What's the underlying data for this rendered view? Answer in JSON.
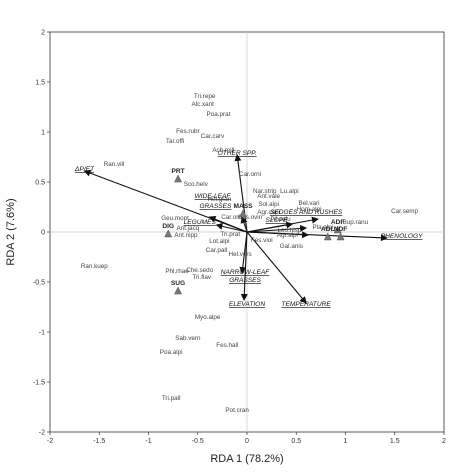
{
  "chart_data": {
    "type": "scatter",
    "xlabel": "RDA 1 (78.2%)",
    "ylabel": "RDA 2 (7.6%)",
    "xlim": [
      -2,
      2
    ],
    "ylim": [
      -2,
      2
    ],
    "xticks": [
      -2,
      -1.5,
      -1,
      -0.5,
      0,
      0.5,
      1,
      1.5,
      2
    ],
    "yticks": [
      -2,
      -1.5,
      -1,
      -0.5,
      0,
      0.5,
      1,
      1.5,
      2
    ],
    "tick_labels_x": [
      "-2",
      "-1.5",
      "-1",
      "-0.5",
      "0",
      "0.5",
      "1",
      "1.5",
      "2"
    ],
    "tick_labels_y": [
      "-2",
      "-1.5",
      "-1",
      "-0.5",
      "0",
      "0.5",
      "1",
      "1.5",
      "2"
    ],
    "grid": false,
    "zero_lines": true,
    "species": [
      {
        "label": "Tri.repe",
        "x": -0.43,
        "y": 1.34
      },
      {
        "label": "Alc.xant",
        "x": -0.45,
        "y": 1.26
      },
      {
        "label": "Poa.prat",
        "x": -0.29,
        "y": 1.16
      },
      {
        "label": "Fes.rubr",
        "x": -0.6,
        "y": 0.99
      },
      {
        "label": "Car.carv",
        "x": -0.35,
        "y": 0.94
      },
      {
        "label": "Tar.offi",
        "x": -0.73,
        "y": 0.89
      },
      {
        "label": "Ach.mill",
        "x": -0.24,
        "y": 0.8
      },
      {
        "label": "Ran.vill",
        "x": -1.35,
        "y": 0.66
      },
      {
        "label": "Car.orni",
        "x": 0.03,
        "y": 0.56
      },
      {
        "label": "Sco.helv",
        "x": -0.52,
        "y": 0.46
      },
      {
        "label": "Nar.strip",
        "x": 0.18,
        "y": 0.39
      },
      {
        "label": "Lu.alpi",
        "x": 0.43,
        "y": 0.39
      },
      {
        "label": "Ant.vale",
        "x": 0.22,
        "y": 0.34
      },
      {
        "label": "Hel.gran",
        "x": -0.28,
        "y": 0.31
      },
      {
        "label": "Bel.vari",
        "x": 0.63,
        "y": 0.27
      },
      {
        "label": "Sol.alpi",
        "x": 0.22,
        "y": 0.26
      },
      {
        "label": "Hom.alpi",
        "x": 0.63,
        "y": 0.21
      },
      {
        "label": "Agr.capi",
        "x": 0.22,
        "y": 0.18
      },
      {
        "label": "Car.semp",
        "x": 1.6,
        "y": 0.19
      },
      {
        "label": "Ces.ovin",
        "x": 0.03,
        "y": 0.13
      },
      {
        "label": "Pil.velu",
        "x": 0.34,
        "y": 0.11
      },
      {
        "label": "Geu.mont",
        "x": -0.73,
        "y": 0.12
      },
      {
        "label": "Car.orni",
        "x": -0.15,
        "y": 0.13
      },
      {
        "label": "Bup.ranu",
        "x": 1.1,
        "y": 0.08
      },
      {
        "label": "Pla.alpi",
        "x": 0.77,
        "y": 0.03
      },
      {
        "label": "Ant.jacq",
        "x": -0.6,
        "y": 0.02
      },
      {
        "label": "Leo.hisp",
        "x": 0.43,
        "y": 0.0
      },
      {
        "label": "Tri.prat",
        "x": -0.17,
        "y": -0.04
      },
      {
        "label": "Ant.nipp",
        "x": -0.62,
        "y": -0.05
      },
      {
        "label": "Agr.alpi",
        "x": 0.41,
        "y": -0.05
      },
      {
        "label": "Fes.viol",
        "x": 0.15,
        "y": -0.1
      },
      {
        "label": "Lot.alpi",
        "x": -0.28,
        "y": -0.11
      },
      {
        "label": "Gal.anis",
        "x": 0.45,
        "y": -0.16
      },
      {
        "label": "Car.pall",
        "x": -0.31,
        "y": -0.2
      },
      {
        "label": "Hel.vers",
        "x": -0.07,
        "y": -0.24
      },
      {
        "label": "Ran.kuep",
        "x": -1.55,
        "y": -0.36
      },
      {
        "label": "Phl.rhae",
        "x": -0.71,
        "y": -0.41
      },
      {
        "label": "Che.sedo",
        "x": -0.48,
        "y": -0.4
      },
      {
        "label": "Tri.flav",
        "x": -0.46,
        "y": -0.47
      },
      {
        "label": "Myo.alpe",
        "x": -0.4,
        "y": -0.87
      },
      {
        "label": "Sab.vern",
        "x": -0.6,
        "y": -1.08
      },
      {
        "label": "Fes.hall",
        "x": -0.2,
        "y": -1.15
      },
      {
        "label": "Poa.alpi",
        "x": -0.77,
        "y": -1.22
      },
      {
        "label": "Tri.pall",
        "x": -0.77,
        "y": -1.68
      },
      {
        "label": "Pot.cran",
        "x": -0.1,
        "y": -1.8
      }
    ],
    "variables": [
      {
        "label": "ΔP/ET",
        "x": -1.65,
        "y": 0.61
      },
      {
        "label": "OTHER SPP.",
        "x": -0.1,
        "y": 0.77
      },
      {
        "label": "WIDE-LEAF",
        "x": -0.35,
        "y": 0.34
      },
      {
        "label": "GRASSES",
        "x": -0.32,
        "y": 0.24
      },
      {
        "label": "LEGUMES",
        "x": -0.48,
        "y": 0.08
      },
      {
        "label": "SEDGES AND RUSHES",
        "x": 0.6,
        "y": 0.18
      },
      {
        "label": "SLOPE",
        "x": 0.3,
        "y": 0.1
      },
      {
        "label": "PHENOLOGY",
        "x": 1.57,
        "y": -0.06
      },
      {
        "label": "NARROW-LEAF",
        "x": -0.02,
        "y": -0.42
      },
      {
        "label": "GRASSES",
        "x": -0.02,
        "y": -0.5
      },
      {
        "label": "ELEVATION",
        "x": 0.0,
        "y": -0.74
      },
      {
        "label": "TEMPERATURE",
        "x": 0.6,
        "y": -0.74
      }
    ],
    "arrows": [
      {
        "name": "ΔP/ET",
        "x": -1.65,
        "y": 0.61
      },
      {
        "name": "OTHER SPP.",
        "x": -0.1,
        "y": 0.77
      },
      {
        "name": "WIDE-LEAF GRASSES",
        "x": -0.38,
        "y": 0.15
      },
      {
        "name": "LEGUMES",
        "x": -0.31,
        "y": 0.07
      },
      {
        "name": "SEDGES AND RUSHES",
        "x": 0.72,
        "y": 0.13
      },
      {
        "name": "SLOPE",
        "x": 0.46,
        "y": 0.08
      },
      {
        "name": "PHENOLOGY",
        "x": 1.42,
        "y": -0.06
      },
      {
        "name": "NARROW-LEAF GRASSES",
        "x": -0.05,
        "y": -0.41
      },
      {
        "name": "ELEVATION",
        "x": -0.03,
        "y": -0.68
      },
      {
        "name": "TEMPERATURE",
        "x": 0.6,
        "y": -0.71
      },
      {
        "name": "MASS",
        "x": -0.05,
        "y": 0.15
      },
      {
        "name": "ADF",
        "x": 0.6,
        "y": 0.04
      },
      {
        "name": "NDF",
        "x": 0.62,
        "y": -0.03
      }
    ],
    "functional_groups": [
      {
        "label": "PRT",
        "x": -0.7,
        "y": 0.53
      },
      {
        "label": "MASS",
        "x": -0.04,
        "y": 0.18
      },
      {
        "label": "DIG",
        "x": -0.8,
        "y": -0.02
      },
      {
        "label": "ADF",
        "x": 0.92,
        "y": 0.02
      },
      {
        "label": "ADL",
        "x": 0.82,
        "y": -0.05
      },
      {
        "label": "NDF",
        "x": 0.95,
        "y": -0.05
      },
      {
        "label": "SUG",
        "x": -0.7,
        "y": -0.59
      }
    ]
  }
}
